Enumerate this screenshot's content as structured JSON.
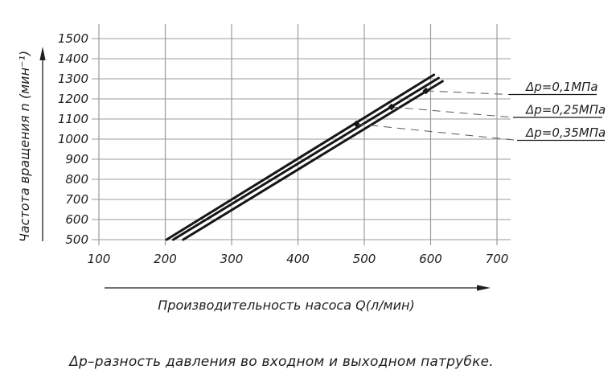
{
  "figure": {
    "caption": "Δр–разность давления во входном и выходном патрубке."
  },
  "colors": {
    "grid": "#9b9b9b",
    "curve": "#161616",
    "leader": "#5a5a5a",
    "text": "#1f1f1f"
  },
  "chart_data": {
    "type": "line",
    "title": "",
    "xlabel": "Производительность насоса Q(л/мин)",
    "ylabel": "Частота вращения n (мин⁻¹)",
    "x_ticks": [
      100,
      200,
      300,
      400,
      500,
      600,
      700
    ],
    "y_ticks": [
      500,
      600,
      700,
      800,
      900,
      1000,
      1100,
      1200,
      1300,
      1400,
      1500
    ],
    "xlim": [
      100,
      700
    ],
    "ylim": [
      500,
      1500
    ],
    "grid": true,
    "legend_position": "right-outside-leader-lines",
    "series": [
      {
        "name": "Δp=0,1МПа",
        "points": [
          [
            227,
            500
          ],
          [
            618,
            1288
          ]
        ],
        "leader_attach": [
          593,
          1240
        ]
      },
      {
        "name": "Δp=0,25МПа",
        "points": [
          [
            212,
            500
          ],
          [
            612,
            1304
          ]
        ],
        "leader_attach": [
          541,
          1160
        ]
      },
      {
        "name": "Δp=0,35МПа",
        "points": [
          [
            202,
            500
          ],
          [
            605,
            1320
          ]
        ],
        "leader_attach": [
          488,
          1076
        ]
      }
    ]
  }
}
